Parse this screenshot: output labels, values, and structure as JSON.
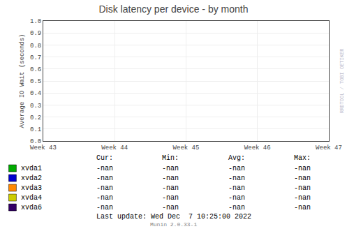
{
  "chart_data": {
    "type": "line",
    "title": "Disk latency per device - by month",
    "y_label": "Average IO Wait (seconds)",
    "xlim": [
      0,
      4
    ],
    "xticks": [
      {
        "value": 0,
        "label": "Week 43"
      },
      {
        "value": 1,
        "label": "Week 44"
      },
      {
        "value": 2,
        "label": "Week 45"
      },
      {
        "value": 3,
        "label": "Week 46"
      },
      {
        "value": 4,
        "label": "Week 47"
      }
    ],
    "ylim": [
      0.0,
      1.0
    ],
    "yticks": [
      {
        "value": 0.0,
        "label": "0.0"
      },
      0.1,
      0.2,
      0.3,
      0.4,
      0.5,
      0.6,
      0.7,
      0.8,
      0.9,
      {
        "value": 1.0,
        "label": "1.0"
      }
    ],
    "grid": true,
    "stat_headers": [
      "Cur:",
      "Min:",
      "Avg:",
      "Max:"
    ],
    "series": [
      {
        "name": "xvda1",
        "color": "#00aa00",
        "values": [],
        "stats": [
          "-nan",
          "-nan",
          "-nan",
          "-nan"
        ]
      },
      {
        "name": "xvda2",
        "color": "#0000cc",
        "values": [],
        "stats": [
          "-nan",
          "-nan",
          "-nan",
          "-nan"
        ]
      },
      {
        "name": "xvda3",
        "color": "#ff8800",
        "values": [],
        "stats": [
          "-nan",
          "-nan",
          "-nan",
          "-nan"
        ]
      },
      {
        "name": "xvda4",
        "color": "#cccc00",
        "values": [],
        "stats": [
          "-nan",
          "-nan",
          "-nan",
          "-nan"
        ]
      },
      {
        "name": "xvda6",
        "color": "#330066",
        "values": [],
        "stats": [
          "-nan",
          "-nan",
          "-nan",
          "-nan"
        ]
      }
    ],
    "annotations": [
      "Last update: Wed Dec  7 10:25:00 2022",
      "Munin 2.0.33-1",
      "RRDTOOL / TOBI OETIKER"
    ]
  }
}
